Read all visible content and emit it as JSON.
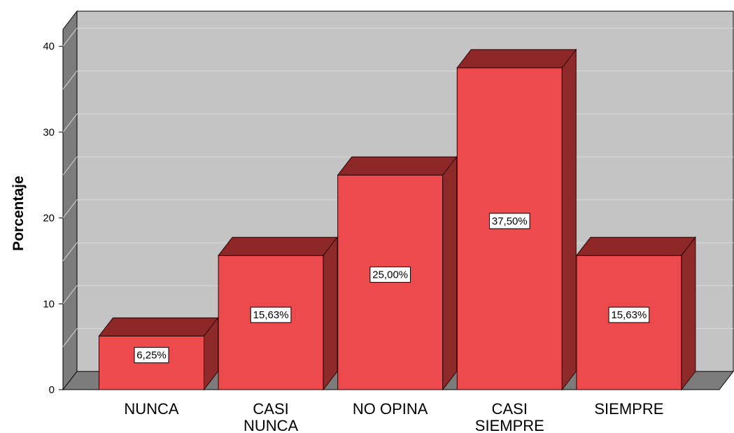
{
  "chart_data": {
    "type": "bar",
    "ylabel": "Porcentaje",
    "xlabel": "",
    "title": "",
    "categories": [
      [
        "NUNCA"
      ],
      [
        "CASI",
        "NUNCA"
      ],
      [
        "NO OPINA"
      ],
      [
        "CASI",
        "SIEMPRE"
      ],
      [
        "SIEMPRE"
      ]
    ],
    "values": [
      6.25,
      15.63,
      25.0,
      37.5,
      15.63
    ],
    "data_labels": [
      "6,25%",
      "15,63%",
      "25,00%",
      "37,50%",
      "15,63%"
    ],
    "yticks": [
      0,
      10,
      20,
      30,
      40
    ],
    "ylim": [
      0,
      43
    ],
    "grid": true,
    "style": "3d",
    "colors": {
      "bar_front": "#ec4a4c",
      "bar_top": "#8e2727",
      "bar_side": "#8e2a2a",
      "plot_back": "#c4c4c4",
      "plot_side": "#7c7c7c",
      "gridline": "#d8d8d8"
    }
  }
}
